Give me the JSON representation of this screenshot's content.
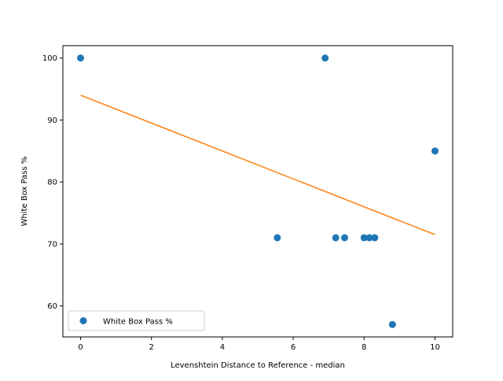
{
  "chart_data": {
    "type": "scatter",
    "title": "",
    "xlabel": "Levenshtein Distance to Reference - median",
    "ylabel": "White Box Pass %",
    "xlim": [
      -0.5,
      10.5
    ],
    "ylim": [
      55,
      102
    ],
    "xticks": [
      0,
      2,
      4,
      6,
      8,
      10
    ],
    "yticks": [
      60,
      70,
      80,
      90,
      100
    ],
    "grid": false,
    "legend": {
      "position": "bottom-left",
      "entries": [
        "White Box Pass %"
      ]
    },
    "series": [
      {
        "name": "White Box Pass %",
        "color": "#1f77b4",
        "x": [
          0,
          6.9,
          5.55,
          7.2,
          7.45,
          8.0,
          8.15,
          8.3,
          8.8,
          10.0
        ],
        "y": [
          100,
          100,
          71,
          71,
          71,
          71,
          71,
          71,
          57,
          85
        ]
      }
    ],
    "trendline": {
      "color": "#ff7f0e",
      "x": [
        0,
        10
      ],
      "y": [
        94,
        71.5
      ]
    }
  }
}
